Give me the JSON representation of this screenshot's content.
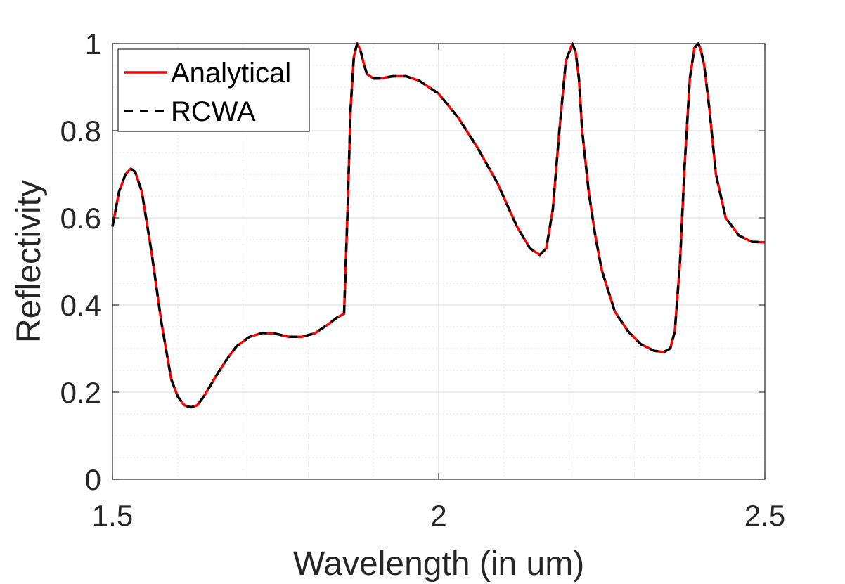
{
  "chart_data": {
    "type": "line",
    "title": "",
    "xlabel": "Wavelength (in um)",
    "ylabel": "Reflectivity",
    "xlim": [
      1.5,
      2.5
    ],
    "ylim": [
      0,
      1
    ],
    "xticks": [
      1.5,
      2.0,
      2.5
    ],
    "xtick_labels": [
      "1.5",
      "2",
      "2.5"
    ],
    "yticks": [
      0,
      0.2,
      0.4,
      0.6,
      0.8,
      1.0
    ],
    "ytick_labels": [
      "0",
      "0.2",
      "0.4",
      "0.6",
      "0.8",
      "1"
    ],
    "grid": true,
    "minor_grid": true,
    "legend_position": "top-left",
    "x": [
      1.5,
      1.51,
      1.52,
      1.528,
      1.535,
      1.545,
      1.56,
      1.575,
      1.59,
      1.6,
      1.61,
      1.62,
      1.63,
      1.64,
      1.65,
      1.66,
      1.675,
      1.69,
      1.71,
      1.73,
      1.75,
      1.77,
      1.79,
      1.81,
      1.83,
      1.845,
      1.855,
      1.86,
      1.865,
      1.87,
      1.875,
      1.88,
      1.885,
      1.89,
      1.9,
      1.91,
      1.93,
      1.95,
      1.97,
      2.0,
      2.03,
      2.06,
      2.09,
      2.12,
      2.14,
      2.155,
      2.165,
      2.175,
      2.185,
      2.195,
      2.205,
      2.21,
      2.215,
      2.22,
      2.23,
      2.24,
      2.25,
      2.27,
      2.29,
      2.31,
      2.33,
      2.345,
      2.355,
      2.362,
      2.37,
      2.377,
      2.385,
      2.392,
      2.398,
      2.402,
      2.407,
      2.415,
      2.425,
      2.44,
      2.46,
      2.48,
      2.5
    ],
    "series": [
      {
        "name": "Analytical",
        "color": "#ff0000",
        "style": "solid",
        "values": [
          0.58,
          0.66,
          0.7,
          0.713,
          0.705,
          0.66,
          0.52,
          0.36,
          0.23,
          0.19,
          0.17,
          0.165,
          0.17,
          0.19,
          0.215,
          0.24,
          0.275,
          0.305,
          0.327,
          0.336,
          0.334,
          0.327,
          0.327,
          0.335,
          0.355,
          0.372,
          0.38,
          0.6,
          0.85,
          0.97,
          1.0,
          0.985,
          0.955,
          0.93,
          0.92,
          0.92,
          0.925,
          0.925,
          0.915,
          0.885,
          0.83,
          0.76,
          0.68,
          0.58,
          0.53,
          0.515,
          0.53,
          0.62,
          0.8,
          0.96,
          1.0,
          0.98,
          0.92,
          0.8,
          0.66,
          0.56,
          0.48,
          0.385,
          0.34,
          0.31,
          0.295,
          0.292,
          0.3,
          0.34,
          0.5,
          0.72,
          0.92,
          0.99,
          1.0,
          0.985,
          0.95,
          0.85,
          0.7,
          0.6,
          0.56,
          0.545,
          0.544
        ]
      },
      {
        "name": "RCWA",
        "color": "#000000",
        "style": "dashed",
        "values": [
          0.58,
          0.66,
          0.7,
          0.713,
          0.705,
          0.66,
          0.52,
          0.36,
          0.23,
          0.19,
          0.17,
          0.165,
          0.17,
          0.19,
          0.215,
          0.24,
          0.275,
          0.305,
          0.327,
          0.336,
          0.334,
          0.327,
          0.327,
          0.335,
          0.355,
          0.372,
          0.38,
          0.6,
          0.85,
          0.97,
          1.0,
          0.985,
          0.955,
          0.93,
          0.92,
          0.92,
          0.925,
          0.925,
          0.915,
          0.885,
          0.83,
          0.76,
          0.68,
          0.58,
          0.53,
          0.515,
          0.53,
          0.62,
          0.8,
          0.96,
          1.0,
          0.98,
          0.92,
          0.8,
          0.66,
          0.56,
          0.48,
          0.385,
          0.34,
          0.31,
          0.295,
          0.292,
          0.3,
          0.34,
          0.5,
          0.72,
          0.92,
          0.99,
          1.0,
          0.985,
          0.95,
          0.85,
          0.7,
          0.6,
          0.56,
          0.545,
          0.544
        ]
      }
    ]
  }
}
